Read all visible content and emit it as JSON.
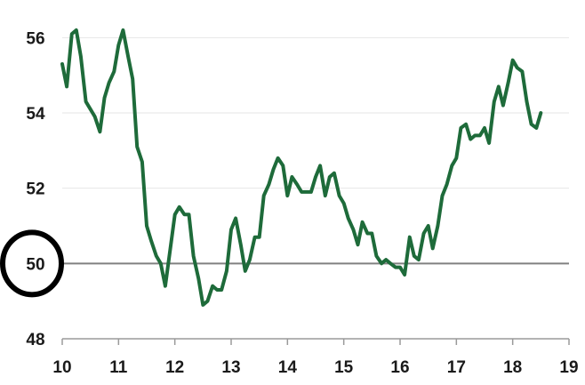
{
  "chart_data": {
    "type": "line",
    "title": "",
    "xlabel": "",
    "ylabel": "",
    "xlim": [
      10,
      19
    ],
    "ylim": [
      48,
      57
    ],
    "x_ticks": [
      "10",
      "11",
      "12",
      "13",
      "14",
      "15",
      "16",
      "17",
      "18",
      "19"
    ],
    "y_ticks": [
      "48",
      "50",
      "52",
      "54",
      "56"
    ],
    "grid": true,
    "reference_line": {
      "y": 50,
      "color": "#808080"
    },
    "highlight": {
      "tick": "50",
      "shape": "circle",
      "color": "#000000"
    },
    "colors": {
      "series": "#1e6b3a",
      "grid": "#e6e6e6",
      "axis": "#9a9a9a"
    },
    "series": [
      {
        "x": [
          10.0,
          10.08,
          10.17,
          10.25,
          10.33,
          10.42,
          10.5,
          10.58,
          10.67,
          10.75,
          10.83,
          10.92,
          11.0,
          11.08,
          11.17,
          11.25,
          11.33,
          11.42,
          11.5,
          11.58,
          11.67,
          11.75,
          11.83,
          11.92,
          12.0,
          12.08,
          12.17,
          12.25,
          12.33,
          12.42,
          12.5,
          12.58,
          12.67,
          12.75,
          12.83,
          12.92,
          13.0,
          13.08,
          13.17,
          13.25,
          13.33,
          13.42,
          13.5,
          13.58,
          13.67,
          13.75,
          13.83,
          13.92,
          14.0,
          14.08,
          14.17,
          14.25,
          14.33,
          14.42,
          14.5,
          14.58,
          14.67,
          14.75,
          14.83,
          14.92,
          15.0,
          15.08,
          15.17,
          15.25,
          15.33,
          15.42,
          15.5,
          15.58,
          15.67,
          15.75,
          15.83,
          15.92,
          16.0,
          16.08,
          16.17,
          16.25,
          16.33,
          16.42,
          16.5,
          16.58,
          16.67,
          16.75,
          16.83,
          16.92,
          17.0,
          17.08,
          17.17,
          17.25,
          17.33,
          17.42,
          17.5,
          17.58,
          17.67,
          17.75,
          17.83,
          17.92,
          18.0,
          18.08,
          18.17,
          18.25,
          18.33,
          18.42,
          18.5
        ],
        "values": [
          55.3,
          54.7,
          56.1,
          56.2,
          55.5,
          54.3,
          54.1,
          53.9,
          53.5,
          54.4,
          54.8,
          55.1,
          55.8,
          56.2,
          55.5,
          54.9,
          53.1,
          52.7,
          51.0,
          50.6,
          50.2,
          50.0,
          49.4,
          50.4,
          51.3,
          51.5,
          51.3,
          51.3,
          50.2,
          49.6,
          48.9,
          49.0,
          49.4,
          49.3,
          49.3,
          49.8,
          50.9,
          51.2,
          50.5,
          49.8,
          50.1,
          50.7,
          50.7,
          51.8,
          52.1,
          52.5,
          52.8,
          52.6,
          51.8,
          52.3,
          52.1,
          51.9,
          51.9,
          51.9,
          52.3,
          52.6,
          51.8,
          52.3,
          52.4,
          51.8,
          51.6,
          51.2,
          50.9,
          50.5,
          51.1,
          50.8,
          50.8,
          50.2,
          50.0,
          50.1,
          50.0,
          49.9,
          49.9,
          49.7,
          50.7,
          50.2,
          50.1,
          50.8,
          51.0,
          50.4,
          51.0,
          51.8,
          52.1,
          52.6,
          52.8,
          53.6,
          53.7,
          53.3,
          53.4,
          53.4,
          53.6,
          53.2,
          54.3,
          54.7,
          54.2,
          54.8,
          55.4,
          55.2,
          55.1,
          54.3,
          53.7,
          53.6,
          54.0
        ]
      }
    ]
  }
}
